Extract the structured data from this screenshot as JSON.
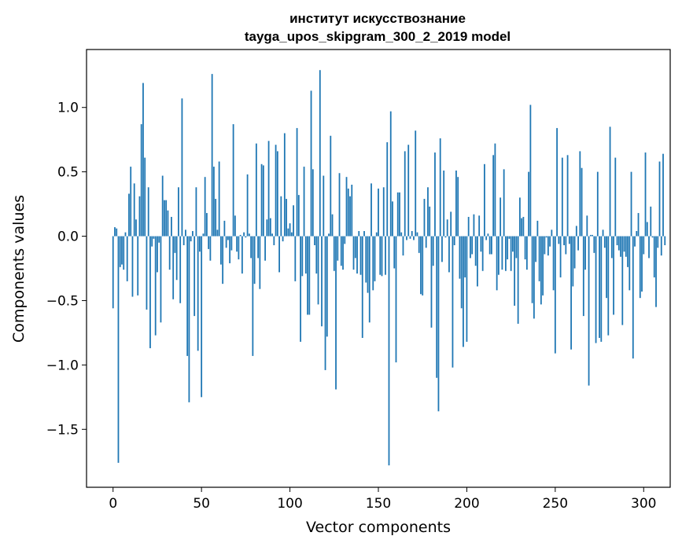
{
  "chart_data": {
    "type": "bar",
    "title_line1": "институт искусствознание",
    "title_line2": "tayga_upos_skipgram_300_2_2019 model",
    "xlabel": "Vector components",
    "ylabel": "Components values",
    "xlim": [
      -15,
      315
    ],
    "ylim": [
      -1.95,
      1.45
    ],
    "xticks": [
      0,
      50,
      100,
      150,
      200,
      250,
      300
    ],
    "xtick_labels": [
      "0",
      "50",
      "100",
      "150",
      "200",
      "250",
      "300"
    ],
    "yticks": [
      -1.5,
      -1.0,
      -0.5,
      0.0,
      0.5,
      1.0
    ],
    "ytick_labels": [
      "−1.5",
      "−1.0",
      "−0.5",
      "0.0",
      "0.5",
      "1.0"
    ],
    "grid": false,
    "bar_color": "#1f77b4",
    "values": [
      -0.56,
      0.07,
      0.06,
      -1.76,
      -0.24,
      -0.22,
      -0.26,
      0.03,
      -0.35,
      0.33,
      0.54,
      -0.47,
      0.41,
      0.13,
      -0.46,
      0.31,
      0.87,
      1.19,
      0.61,
      -0.57,
      0.38,
      -0.87,
      -0.08,
      -0.02,
      -0.77,
      -0.28,
      -0.05,
      -0.67,
      0.47,
      0.28,
      0.28,
      0.2,
      -0.26,
      0.15,
      -0.49,
      -0.13,
      -0.34,
      0.38,
      -0.52,
      1.07,
      -0.07,
      0.05,
      -0.93,
      -1.29,
      -0.04,
      0.04,
      -0.62,
      0.38,
      -0.89,
      -0.12,
      -1.25,
      0.02,
      0.46,
      0.18,
      -0.1,
      -0.19,
      1.26,
      0.54,
      0.29,
      0.05,
      0.58,
      -0.22,
      -0.37,
      0.12,
      -0.09,
      -0.03,
      -0.21,
      -0.11,
      0.87,
      0.16,
      -0.12,
      -0.18,
      0.01,
      -0.29,
      0.03,
      -0.01,
      0.48,
      0.02,
      -0.17,
      -0.93,
      -0.37,
      0.72,
      -0.17,
      -0.41,
      0.56,
      0.55,
      -0.19,
      0.13,
      0.74,
      0.14,
      0.02,
      -0.07,
      0.71,
      0.66,
      -0.28,
      0.31,
      -0.04,
      0.8,
      0.29,
      0.06,
      0.1,
      0.03,
      0.24,
      -0.35,
      0.84,
      0.32,
      -0.82,
      -0.31,
      0.54,
      -0.29,
      -0.61,
      -0.61,
      1.13,
      0.52,
      -0.07,
      -0.29,
      -0.53,
      1.29,
      -0.7,
      0.47,
      -1.04,
      -0.78,
      0.02,
      0.78,
      0.17,
      -0.27,
      -1.19,
      -0.19,
      0.49,
      -0.23,
      -0.26,
      -0.06,
      0.46,
      0.37,
      0.31,
      0.4,
      -0.26,
      -0.17,
      -0.29,
      0.04,
      -0.3,
      -0.79,
      0.04,
      -0.36,
      -0.44,
      -0.67,
      0.41,
      -0.42,
      -0.35,
      0.03,
      0.37,
      -0.3,
      -0.31,
      0.38,
      -0.3,
      0.73,
      -1.78,
      0.97,
      0.27,
      -0.25,
      -0.98,
      0.34,
      0.34,
      0.03,
      -0.15,
      0.66,
      -0.03,
      0.71,
      -0.02,
      0.04,
      -0.03,
      0.82,
      0.03,
      -0.13,
      -0.45,
      -0.46,
      0.29,
      -0.09,
      0.38,
      0.23,
      -0.71,
      -0.23,
      0.65,
      -1.1,
      -1.36,
      0.76,
      -0.2,
      0.51,
      -0.01,
      0.13,
      -0.28,
      0.19,
      -1.02,
      -0.07,
      0.51,
      0.46,
      -0.33,
      -0.56,
      -0.86,
      -0.32,
      -0.82,
      0.15,
      -0.17,
      -0.14,
      0.17,
      -0.23,
      -0.39,
      0.16,
      -0.12,
      -0.27,
      0.56,
      -0.03,
      0.02,
      -0.14,
      -0.14,
      0.63,
      0.72,
      -0.42,
      -0.3,
      0.3,
      -0.26,
      0.52,
      -0.27,
      -0.18,
      -0.02,
      -0.27,
      -0.12,
      -0.54,
      -0.17,
      -0.68,
      0.3,
      0.14,
      0.15,
      -0.18,
      -0.26,
      0.5,
      1.02,
      -0.52,
      -0.64,
      -0.2,
      0.12,
      -0.35,
      -0.53,
      -0.46,
      -0.14,
      -0.01,
      -0.15,
      -0.08,
      0.05,
      -0.42,
      -0.91,
      0.84,
      -0.06,
      -0.32,
      0.61,
      -0.07,
      -0.14,
      0.63,
      -0.06,
      -0.88,
      -0.39,
      -0.25,
      0.08,
      -0.11,
      0.66,
      0.53,
      -0.62,
      -0.26,
      0.16,
      -1.16,
      0.01,
      0.01,
      -0.13,
      -0.83,
      0.5,
      -0.79,
      -0.82,
      0.05,
      -0.09,
      -0.48,
      -0.77,
      0.85,
      -0.17,
      -0.61,
      0.61,
      -0.07,
      -0.11,
      -0.16,
      -0.69,
      -0.12,
      -0.16,
      -0.24,
      -0.42,
      0.5,
      -0.95,
      -0.08,
      0.04,
      0.18,
      -0.48,
      -0.43,
      -0.14,
      0.65,
      0.11,
      -0.17,
      0.23,
      -0.01,
      -0.32,
      -0.55,
      -0.09,
      0.58,
      -0.15,
      0.64,
      -0.07
    ]
  }
}
